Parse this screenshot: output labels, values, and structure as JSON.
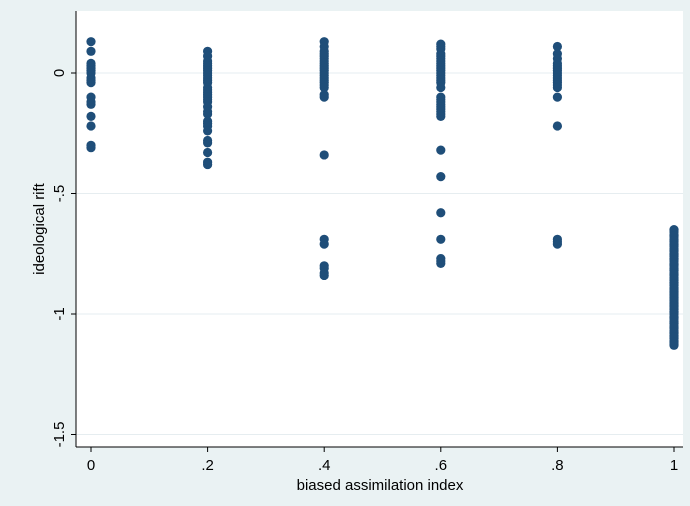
{
  "chart_data": {
    "type": "scatter",
    "title": "",
    "xlabel": "biased assimilation index",
    "ylabel": "ideological rift",
    "xlim": [
      0,
      1
    ],
    "ylim": [
      -1.5,
      0.15
    ],
    "x_ticks": [
      0,
      0.2,
      0.4,
      0.6,
      0.8,
      1
    ],
    "x_tick_labels": [
      "0",
      ".2",
      ".4",
      ".6",
      ".8",
      "1"
    ],
    "y_ticks": [
      0,
      -0.5,
      -1,
      -1.5
    ],
    "y_tick_labels": [
      "0",
      "-.5",
      "-1",
      "-1.5"
    ],
    "grid": "horizontal",
    "legend": "none",
    "colors": {
      "background": "#eaf2f3",
      "plot_area": "#ffffff",
      "marker": "#1f4e79",
      "grid": "#e6edf0"
    },
    "series": [
      {
        "x": [
          0,
          0,
          0,
          0,
          0,
          0,
          0,
          0,
          0,
          0,
          0,
          0,
          0,
          0,
          0,
          0,
          0
        ],
        "y": [
          0.13,
          0.09,
          0.04,
          0.03,
          0.02,
          0.01,
          0.0,
          -0.02,
          -0.03,
          -0.04,
          -0.1,
          -0.12,
          -0.13,
          -0.18,
          -0.22,
          -0.3,
          -0.31
        ]
      },
      {
        "x": [
          0.2,
          0.2,
          0.2,
          0.2,
          0.2,
          0.2,
          0.2,
          0.2,
          0.2,
          0.2,
          0.2,
          0.2,
          0.2,
          0.2,
          0.2,
          0.2,
          0.2,
          0.2,
          0.2,
          0.2,
          0.2,
          0.2,
          0.2,
          0.2,
          0.2,
          0.2,
          0.2,
          0.2,
          0.2,
          0.2,
          0.2
        ],
        "y": [
          0.09,
          0.07,
          0.05,
          0.04,
          0.03,
          0.02,
          0.01,
          0.0,
          -0.01,
          -0.02,
          -0.03,
          -0.04,
          -0.06,
          -0.07,
          -0.08,
          -0.09,
          -0.1,
          -0.11,
          -0.12,
          -0.14,
          -0.16,
          -0.17,
          -0.2,
          -0.21,
          -0.22,
          -0.24,
          -0.28,
          -0.29,
          -0.33,
          -0.37,
          -0.38
        ]
      },
      {
        "x": [
          0.4,
          0.4,
          0.4,
          0.4,
          0.4,
          0.4,
          0.4,
          0.4,
          0.4,
          0.4,
          0.4,
          0.4,
          0.4,
          0.4,
          0.4,
          0.4,
          0.4,
          0.4,
          0.4,
          0.4,
          0.4,
          0.4,
          0.4,
          0.4,
          0.4,
          0.4,
          0.4
        ],
        "y": [
          0.13,
          0.11,
          0.09,
          0.07,
          0.06,
          0.05,
          0.04,
          0.03,
          0.02,
          0.01,
          0.0,
          -0.01,
          -0.02,
          -0.03,
          -0.04,
          -0.05,
          -0.06,
          -0.09,
          -0.1,
          -0.34,
          -0.69,
          -0.71,
          -0.8,
          -0.81,
          -0.83,
          -0.84,
          0.08
        ]
      },
      {
        "x": [
          0.6,
          0.6,
          0.6,
          0.6,
          0.6,
          0.6,
          0.6,
          0.6,
          0.6,
          0.6,
          0.6,
          0.6,
          0.6,
          0.6,
          0.6,
          0.6,
          0.6,
          0.6,
          0.6,
          0.6,
          0.6,
          0.6,
          0.6,
          0.6,
          0.6,
          0.6,
          0.6,
          0.6,
          0.6,
          0.6,
          0.6,
          0.6,
          0.6
        ],
        "y": [
          0.12,
          0.1,
          0.08,
          0.07,
          0.06,
          0.05,
          0.04,
          0.03,
          0.02,
          0.01,
          0.0,
          -0.01,
          -0.02,
          -0.03,
          -0.04,
          -0.06,
          -0.1,
          -0.11,
          -0.12,
          -0.13,
          -0.14,
          -0.15,
          -0.16,
          -0.17,
          -0.18,
          -0.32,
          -0.43,
          -0.58,
          -0.69,
          -0.77,
          -0.78,
          -0.79,
          0.11
        ]
      },
      {
        "x": [
          0.8,
          0.8,
          0.8,
          0.8,
          0.8,
          0.8,
          0.8,
          0.8,
          0.8,
          0.8,
          0.8,
          0.8,
          0.8,
          0.8,
          0.8,
          0.8,
          0.8,
          0.8,
          0.8
        ],
        "y": [
          0.11,
          0.08,
          0.06,
          0.04,
          0.03,
          0.02,
          0.01,
          0.0,
          -0.01,
          -0.02,
          -0.03,
          -0.04,
          -0.05,
          -0.06,
          -0.1,
          -0.22,
          -0.69,
          -0.7,
          -0.71
        ]
      },
      {
        "x": [
          1,
          1,
          1,
          1,
          1,
          1,
          1,
          1,
          1,
          1,
          1,
          1,
          1,
          1,
          1,
          1,
          1,
          1,
          1,
          1,
          1,
          1,
          1,
          1,
          1,
          1,
          1,
          1,
          1,
          1,
          1,
          1,
          1,
          1,
          1,
          1,
          1,
          1,
          1,
          1,
          1,
          1,
          1,
          1,
          1,
          1,
          1,
          1,
          1,
          1,
          1,
          1,
          1,
          1,
          1,
          1,
          1,
          1,
          1,
          1,
          1,
          1,
          1,
          1,
          1,
          1,
          1,
          1,
          1,
          1,
          1,
          1,
          1,
          1,
          1,
          1,
          1,
          1
        ],
        "y": [
          -0.65,
          -0.66,
          -0.67,
          -0.68,
          -0.69,
          -0.7,
          -0.71,
          -0.72,
          -0.73,
          -0.74,
          -0.75,
          -0.76,
          -0.77,
          -0.78,
          -0.79,
          -0.8,
          -0.81,
          -0.82,
          -0.83,
          -0.84,
          -0.85,
          -0.86,
          -0.87,
          -0.88,
          -0.89,
          -0.9,
          -0.91,
          -0.92,
          -0.93,
          -0.94,
          -0.95,
          -0.96,
          -0.97,
          -0.98,
          -0.99,
          -1.0,
          -1.01,
          -1.02,
          -1.03,
          -1.04,
          -1.05,
          -1.06,
          -1.07,
          -1.08,
          -1.09,
          -1.1,
          -1.11,
          -1.12,
          -1.13,
          -0.655,
          -0.675,
          -0.695,
          -0.715,
          -0.735,
          -0.755,
          -0.775,
          -0.795,
          -0.815,
          -0.835,
          -0.855,
          -0.875,
          -0.895,
          -0.915,
          -0.935,
          -0.955,
          -0.975,
          -0.995,
          -1.015,
          -1.035,
          -1.055,
          -1.075,
          -1.095,
          -1.115,
          -1.125,
          -0.905,
          -0.925,
          -0.945,
          -0.965
        ]
      }
    ]
  }
}
